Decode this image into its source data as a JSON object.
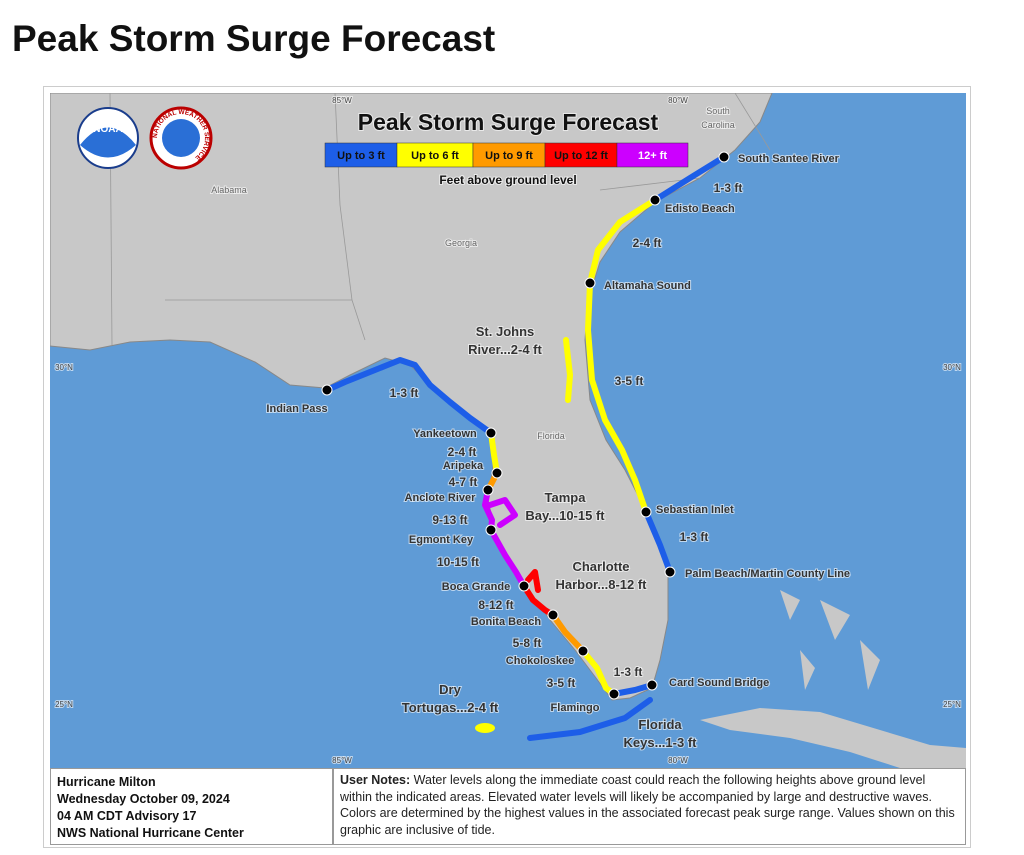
{
  "header": {
    "title": "Peak Storm Surge Forecast"
  },
  "map": {
    "title": "Peak Storm Surge Forecast",
    "logos": {
      "noaa": "NOAA",
      "nws": "NATIONAL WEATHER SERVICE"
    },
    "legend": {
      "items": [
        {
          "label": "Up to 3 ft",
          "color": "#1d5ee8"
        },
        {
          "label": "Up to 6 ft",
          "color": "#ffff00"
        },
        {
          "label": "Up to 9 ft",
          "color": "#ff9a00"
        },
        {
          "label": "Up to 12 ft",
          "color": "#ff0000"
        },
        {
          "label": "12+ ft",
          "color": "#cc00ff"
        }
      ],
      "caption": "Feet above ground level"
    },
    "grid_labels": [
      "85°W",
      "80°W",
      "30°N",
      "30°N",
      "25°N",
      "25°N",
      "85°W",
      "80°W"
    ],
    "regions": [
      {
        "lines": [
          "Alabama"
        ]
      },
      {
        "lines": [
          "Georgia"
        ]
      },
      {
        "lines": [
          "Florida"
        ]
      },
      {
        "lines": [
          "South",
          "Carolina"
        ]
      }
    ],
    "points": [
      "South Santee River",
      "Edisto Beach",
      "Altamaha Sound",
      "Sebastian Inlet",
      "Palm Beach/Martin County Line",
      "Card Sound Bridge",
      "Indian Pass",
      "Yankeetown",
      "Aripeka",
      "Anclote River",
      "Egmont Key",
      "Boca Grande",
      "Bonita Beach",
      "Chokoloskee",
      "Flamingo"
    ],
    "ranges": [
      "1-3 ft",
      "2-4 ft",
      "3-5 ft",
      "1-3 ft",
      "1-3 ft",
      "2-4 ft",
      "4-7 ft",
      "9-13 ft",
      "10-15 ft",
      "8-12 ft",
      "5-8 ft",
      "3-5 ft",
      "1-3 ft"
    ],
    "area_labels": [
      {
        "lines": [
          "St. Johns",
          "River...2-4 ft"
        ]
      },
      {
        "lines": [
          "Tampa",
          "Bay...10-15 ft"
        ]
      },
      {
        "lines": [
          "Charlotte",
          "Harbor...8-12 ft"
        ]
      },
      {
        "lines": [
          "Dry",
          "Tortugas...2-4 ft"
        ]
      },
      {
        "lines": [
          "Florida",
          "Keys...1-3 ft"
        ]
      }
    ]
  },
  "info": {
    "lines": [
      "Hurricane Milton",
      "Wednesday October 09, 2024",
      "04 AM CDT Advisory 17",
      "NWS National Hurricane Center"
    ]
  },
  "notes": {
    "label": "User Notes:",
    "text": "Water levels along the immediate coast could reach the following heights above ground level within the indicated areas. Elevated water levels will likely be accompanied by large and destructive waves. Colors are determined by the highest values in the associated forecast peak surge range. Values shown on this graphic are inclusive of tide."
  }
}
